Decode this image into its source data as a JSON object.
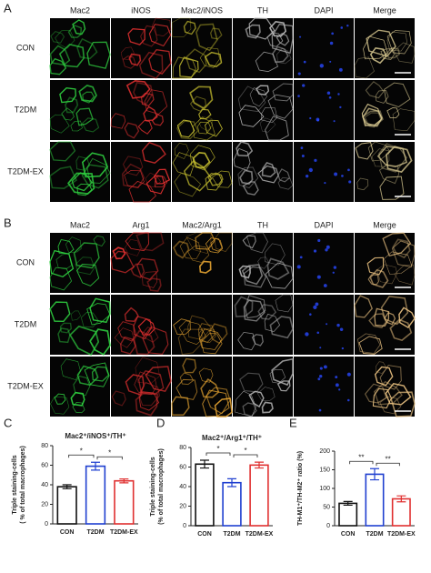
{
  "panel_a": {
    "label": "A",
    "columns": [
      "Mac2",
      "iNOS",
      "Mac2/iNOS",
      "TH",
      "DAPI",
      "Merge"
    ],
    "rows": [
      "CON",
      "T2DM",
      "T2DM-EX"
    ]
  },
  "panel_b": {
    "label": "B",
    "columns": [
      "Mac2",
      "Arg1",
      "Mac2/Arg1",
      "TH",
      "DAPI",
      "Merge"
    ],
    "rows": [
      "CON",
      "T2DM",
      "T2DM-EX"
    ]
  },
  "chart_data": [
    {
      "type": "bar",
      "label": "C",
      "title": "Mac2⁺/iNOS⁺/TH⁺",
      "y_label": [
        "Triple staining-cells",
        "( % of total macrophages)"
      ],
      "categories": [
        "CON",
        "T2DM",
        "T2DM-EX"
      ],
      "values": [
        38,
        59,
        44
      ],
      "errors": [
        2,
        4,
        2
      ],
      "colors": [
        "#111111",
        "#2040d0",
        "#e03030"
      ],
      "ylim": [
        0,
        80
      ],
      "yticks": [
        0,
        20,
        40,
        60,
        80
      ],
      "significance": [
        "*",
        "*"
      ]
    },
    {
      "type": "bar",
      "label": "D",
      "title": "Mac2⁺/Arg1⁺/TH⁺",
      "y_label": [
        "Triple staining-cells",
        "(% of total macrophages)"
      ],
      "categories": [
        "CON",
        "T2DM",
        "T2DM-EX"
      ],
      "values": [
        63,
        44,
        62
      ],
      "errors": [
        4,
        4,
        3
      ],
      "colors": [
        "#111111",
        "#2040d0",
        "#e03030"
      ],
      "ylim": [
        0,
        80
      ],
      "yticks": [
        0,
        20,
        40,
        60,
        80
      ],
      "significance": [
        "*",
        "*"
      ]
    },
    {
      "type": "bar",
      "label": "E",
      "y_label": [
        "TH-M1⁺/TH-M2⁺ ratio (%)"
      ],
      "categories": [
        "CON",
        "T2DM",
        "T2DM-EX"
      ],
      "values": [
        60,
        138,
        72
      ],
      "errors": [
        5,
        15,
        8
      ],
      "colors": [
        "#111111",
        "#2040d0",
        "#e03030"
      ],
      "ylim": [
        0,
        200
      ],
      "yticks": [
        0,
        50,
        100,
        150,
        200
      ],
      "significance": [
        "**",
        "**"
      ]
    }
  ]
}
